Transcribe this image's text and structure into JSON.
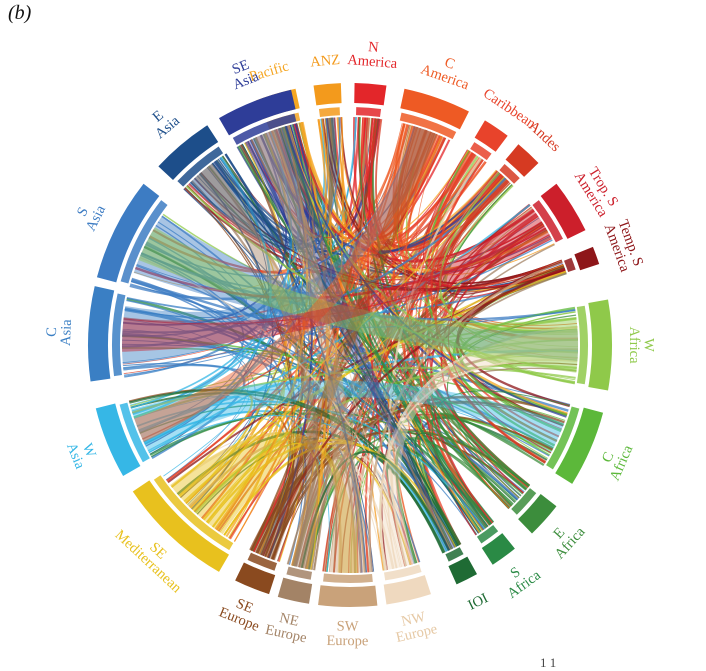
{
  "figure": {
    "panel_label": "(b)",
    "footer_text": "1      1"
  },
  "regions": [
    {
      "id": "pacific",
      "lines": [
        "Pacific"
      ],
      "color": "#f5a623"
    },
    {
      "id": "anz",
      "lines": [
        "ANZ"
      ],
      "color": "#f39a1c"
    },
    {
      "id": "n-america",
      "lines": [
        "N",
        "America"
      ],
      "color": "#e3262a"
    },
    {
      "id": "c-america",
      "lines": [
        "C",
        "America"
      ],
      "color": "#ee5a24"
    },
    {
      "id": "caribbean",
      "lines": [
        "Caribbean"
      ],
      "color": "#e8432b"
    },
    {
      "id": "andes",
      "lines": [
        "Andes"
      ],
      "color": "#d63a22"
    },
    {
      "id": "trop-s-america",
      "lines": [
        "Trop. S",
        "America"
      ],
      "color": "#cc1f2b"
    },
    {
      "id": "temp-s-america",
      "lines": [
        "Temp. S",
        "America"
      ],
      "color": "#8e1619"
    },
    {
      "id": "w-africa",
      "lines": [
        "W",
        "Africa"
      ],
      "color": "#8fc94a"
    },
    {
      "id": "c-africa",
      "lines": [
        "C",
        "Africa"
      ],
      "color": "#5cb83a"
    },
    {
      "id": "e-africa",
      "lines": [
        "E",
        "Africa"
      ],
      "color": "#3c8d3c"
    },
    {
      "id": "s-africa",
      "lines": [
        "S",
        "Africa"
      ],
      "color": "#2a8a45"
    },
    {
      "id": "ioi",
      "lines": [
        "IOI"
      ],
      "color": "#1f6b34"
    },
    {
      "id": "nw-europe",
      "lines": [
        "NW",
        "Europe"
      ],
      "color": "#efd9bf"
    },
    {
      "id": "sw-europe",
      "lines": [
        "SW",
        "Europe"
      ],
      "color": "#c9a27a"
    },
    {
      "id": "ne-europe",
      "lines": [
        "NE",
        "Europe"
      ],
      "color": "#a38366"
    },
    {
      "id": "se-europe",
      "lines": [
        "SE",
        "Europe"
      ],
      "color": "#8a4a1f"
    },
    {
      "id": "se-mediterranean",
      "lines": [
        "SE",
        "Mediterranean"
      ],
      "color": "#e8c11e"
    },
    {
      "id": "w-asia",
      "lines": [
        "W",
        "Asia"
      ],
      "color": "#36b7e6"
    },
    {
      "id": "c-asia",
      "lines": [
        "C",
        "Asia"
      ],
      "color": "#3a7fc4"
    },
    {
      "id": "s-asia",
      "lines": [
        "S",
        "Asia"
      ],
      "color": "#3d7cc3"
    },
    {
      "id": "e-asia",
      "lines": [
        "E",
        "Asia"
      ],
      "color": "#1d4e8a"
    },
    {
      "id": "se-asia",
      "lines": [
        "SE",
        "Asia"
      ],
      "color": "#2e3d98"
    }
  ]
}
